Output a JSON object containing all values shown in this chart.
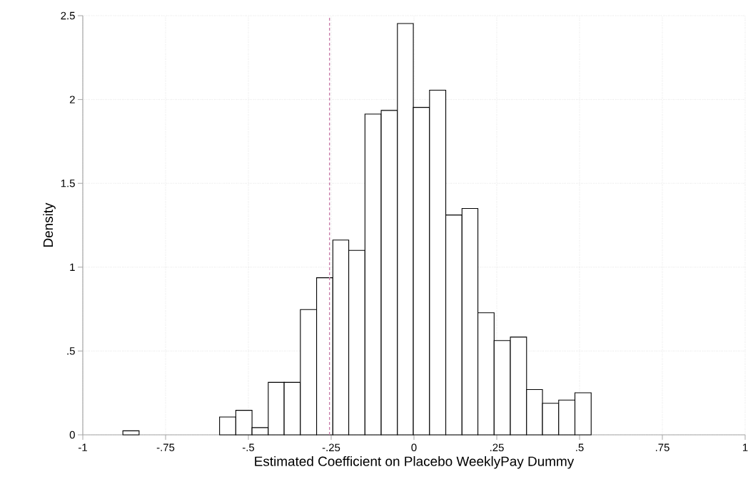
{
  "chart_data": {
    "type": "histogram",
    "xlabel": "Estimated Coefficient on Placebo WeeklyPay Dummy",
    "ylabel": "Density",
    "bins": [
      -0.879,
      -0.83,
      -0.782,
      -0.733,
      -0.684,
      -0.635,
      -0.587,
      -0.538,
      -0.489,
      -0.44,
      -0.392,
      -0.343,
      -0.294,
      -0.245,
      -0.197,
      -0.148,
      -0.099,
      -0.05,
      -0.002,
      0.047,
      0.096,
      0.145,
      0.193,
      0.242,
      0.291,
      0.34,
      0.388,
      0.437,
      0.486,
      0.535
    ],
    "values": [
      0.024,
      0,
      0,
      0,
      0,
      0,
      0.106,
      0.146,
      0.043,
      0.313,
      0.313,
      0.747,
      0.937,
      1.162,
      1.1,
      1.913,
      1.935,
      2.453,
      1.953,
      2.056,
      1.311,
      1.35,
      0.728,
      0.562,
      0.583,
      0.27,
      0.188,
      0.207,
      0.251
    ],
    "color": "#ffffff",
    "xlim": [
      -1,
      1
    ],
    "ylim": [
      0,
      2.5
    ],
    "xticks": [
      {
        "value": -1,
        "label": "-1"
      },
      {
        "value": -0.75,
        "label": "-.75"
      },
      {
        "value": -0.5,
        "label": "-.5"
      },
      {
        "value": -0.25,
        "label": "-.25"
      },
      0,
      {
        "value": 0.25,
        "label": ".25"
      },
      {
        "value": 0.5,
        "label": ".5"
      },
      {
        "value": 0.75,
        "label": ".75"
      },
      1
    ],
    "yticks": [
      0,
      {
        "value": 0.5,
        "label": ".5"
      },
      1,
      1.5,
      2,
      2.5
    ],
    "grid": true,
    "ref_lines": [
      {
        "axis": "x",
        "value": -0.255,
        "color": "#c97aa8",
        "line_style": "dashed"
      }
    ]
  }
}
